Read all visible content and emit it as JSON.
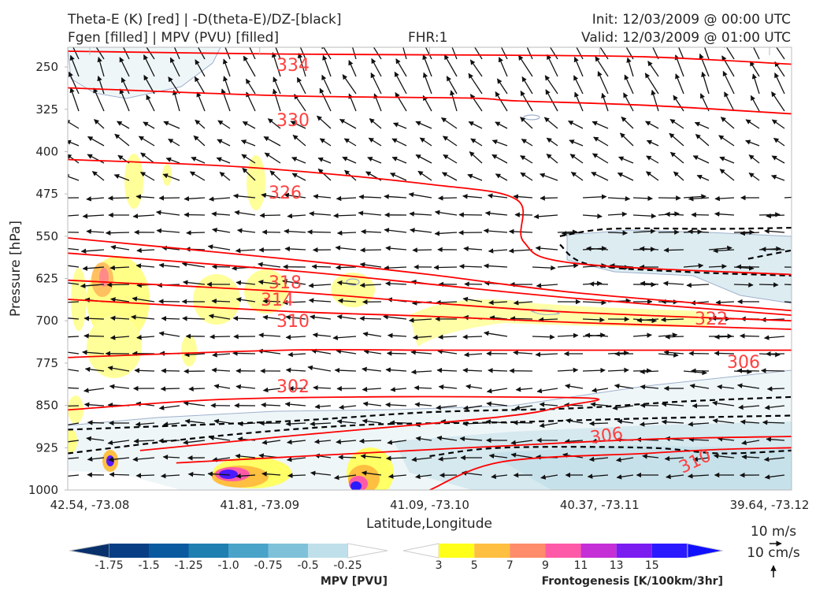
{
  "header": {
    "title_line1": "Theta-E (K) [red] | -D(theta-E)/DZ-[black]",
    "title_line2": "Fgen [filled] | MPV (PVU) [filled]",
    "forecast_hour": "FHR:1",
    "init_time": "Init: 12/03/2009 @ 00:00 UTC",
    "valid_time": "Valid: 12/03/2009 @ 01:00 UTC"
  },
  "chart_data": {
    "type": "contour",
    "title": "Theta-E (K) [red] | -D(theta-E)/DZ-[black] | Fgen [filled] | MPV (PVU) [filled]",
    "xlabel": "Latitude,Longitude",
    "ylabel": "Pressure [hPa]",
    "x_ticks": [
      "42.54, -73.08",
      "41.81, -73.09",
      "41.09, -73.10",
      "40.37, -73.11",
      "39.64, -73.12"
    ],
    "y_ticks": [
      250,
      325,
      400,
      475,
      550,
      625,
      700,
      775,
      850,
      925,
      1000
    ],
    "ylim": [
      1000,
      215
    ],
    "y_inverted": true,
    "grid": true,
    "theta_e_contours": [
      {
        "label": "334",
        "points": [
          [
            0,
            222
          ],
          [
            0.3,
            227
          ],
          [
            0.6,
            229
          ],
          [
            0.8,
            232
          ],
          [
            1,
            245
          ]
        ]
      },
      {
        "label": "330",
        "points": [
          [
            0,
            287
          ],
          [
            0.3,
            301
          ],
          [
            0.55,
            305
          ],
          [
            0.62,
            310
          ],
          [
            0.8,
            318
          ],
          [
            1,
            333
          ]
        ]
      },
      {
        "label": "326",
        "points": [
          [
            0,
            414
          ],
          [
            0.25,
            428
          ],
          [
            0.5,
            458
          ],
          [
            0.62,
            485
          ],
          [
            0.63,
            560
          ],
          [
            0.7,
            598
          ],
          [
            1,
            618
          ]
        ]
      },
      {
        "label": "322",
        "points": [
          [
            0,
            553
          ],
          [
            0.3,
            590
          ],
          [
            0.5,
            618
          ],
          [
            0.7,
            650
          ],
          [
            1,
            682
          ]
        ]
      },
      {
        "label": "318",
        "points": [
          [
            0,
            580
          ],
          [
            0.3,
            610
          ],
          [
            0.5,
            635
          ],
          [
            0.7,
            660
          ],
          [
            1,
            690
          ]
        ]
      },
      {
        "label": "314",
        "points": [
          [
            0,
            628
          ],
          [
            0.3,
            648
          ],
          [
            0.5,
            668
          ],
          [
            0.7,
            685
          ],
          [
            1,
            700
          ]
        ]
      },
      {
        "label": "310",
        "points": [
          [
            0,
            662
          ],
          [
            0.3,
            683
          ],
          [
            0.5,
            692
          ],
          [
            0.7,
            703
          ],
          [
            1,
            715
          ]
        ]
      },
      {
        "label": "306",
        "points": [
          [
            0,
            765
          ],
          [
            0.3,
            752
          ],
          [
            0.5,
            752
          ],
          [
            0.7,
            752
          ],
          [
            1,
            752
          ]
        ]
      },
      {
        "label": "302",
        "points": [
          [
            0,
            858
          ],
          [
            0.2,
            840
          ],
          [
            0.4,
            835
          ],
          [
            0.6,
            835
          ],
          [
            0.73,
            838
          ],
          [
            0.69,
            850
          ],
          [
            0.6,
            870
          ],
          [
            0.3,
            905
          ],
          [
            0.1,
            930
          ]
        ]
      },
      {
        "label": "306",
        "points": [
          [
            0.15,
            952
          ],
          [
            0.4,
            935
          ],
          [
            0.6,
            922
          ],
          [
            0.8,
            910
          ],
          [
            1,
            905
          ]
        ]
      },
      {
        "label": "310",
        "points": [
          [
            0.5,
            1000
          ],
          [
            0.6,
            950
          ],
          [
            0.8,
            935
          ],
          [
            0.9,
            928
          ],
          [
            1,
            925
          ]
        ]
      }
    ],
    "stability_contours_dashed": [
      {
        "points": [
          [
            0,
            893
          ],
          [
            0.3,
            878
          ],
          [
            0.5,
            862
          ],
          [
            0.7,
            855
          ],
          [
            0.85,
            843
          ],
          [
            1,
            835
          ]
        ]
      },
      {
        "points": [
          [
            0,
            935
          ],
          [
            0.2,
            905
          ],
          [
            0.4,
            885
          ],
          [
            0.6,
            880
          ],
          [
            0.8,
            873
          ],
          [
            1,
            868
          ]
        ]
      },
      {
        "points": [
          [
            0.5,
            940
          ],
          [
            0.6,
            925
          ],
          [
            0.8,
            925
          ],
          [
            0.9,
            935
          ],
          [
            1,
            930
          ]
        ]
      },
      {
        "points": [
          [
            0.68,
            550
          ],
          [
            0.75,
            537
          ],
          [
            0.9,
            537
          ],
          [
            1,
            535
          ]
        ]
      },
      {
        "points": [
          [
            0.68,
            565
          ],
          [
            0.72,
            600
          ],
          [
            0.85,
            613
          ],
          [
            1,
            620
          ]
        ]
      },
      {
        "points": [
          [
            0.94,
            590
          ],
          [
            1,
            575
          ]
        ]
      }
    ],
    "annotation_labels": [
      "334",
      "330",
      "326",
      "318",
      "314",
      "310",
      "322",
      "306",
      "302",
      "306",
      "310"
    ],
    "colorbars": [
      {
        "name": "MPV [PVU]",
        "ticks": [
          "-1.75",
          "-1.5",
          "-1.25",
          "-1.0",
          "-0.75",
          "-0.5",
          "-0.25"
        ],
        "colors": [
          "#08306b",
          "#083f84",
          "#0a5aa0",
          "#1f7fb0",
          "#4aa3c8",
          "#7fc1d8",
          "#bfe0eb",
          "#ffffff"
        ]
      },
      {
        "name": "Frontogenesis [K/100km/3hr]",
        "ticks": [
          "3",
          "5",
          "7",
          "9",
          "11",
          "13",
          "15"
        ],
        "colors": [
          "#ffffff",
          "#ffff1a",
          "#ffbf40",
          "#ff8c6a",
          "#ff5aa8",
          "#c42fd6",
          "#7b1cf0",
          "#2b1aff",
          "#1010ff"
        ]
      }
    ],
    "wind_legend": {
      "horizontal": "10 m/s",
      "vertical": "10 cm/s"
    }
  },
  "colors": {
    "theta_e": "#ff0000",
    "theta_e_label": "#ff4040",
    "stability": "#000000",
    "axes": "#bbbbbb"
  }
}
